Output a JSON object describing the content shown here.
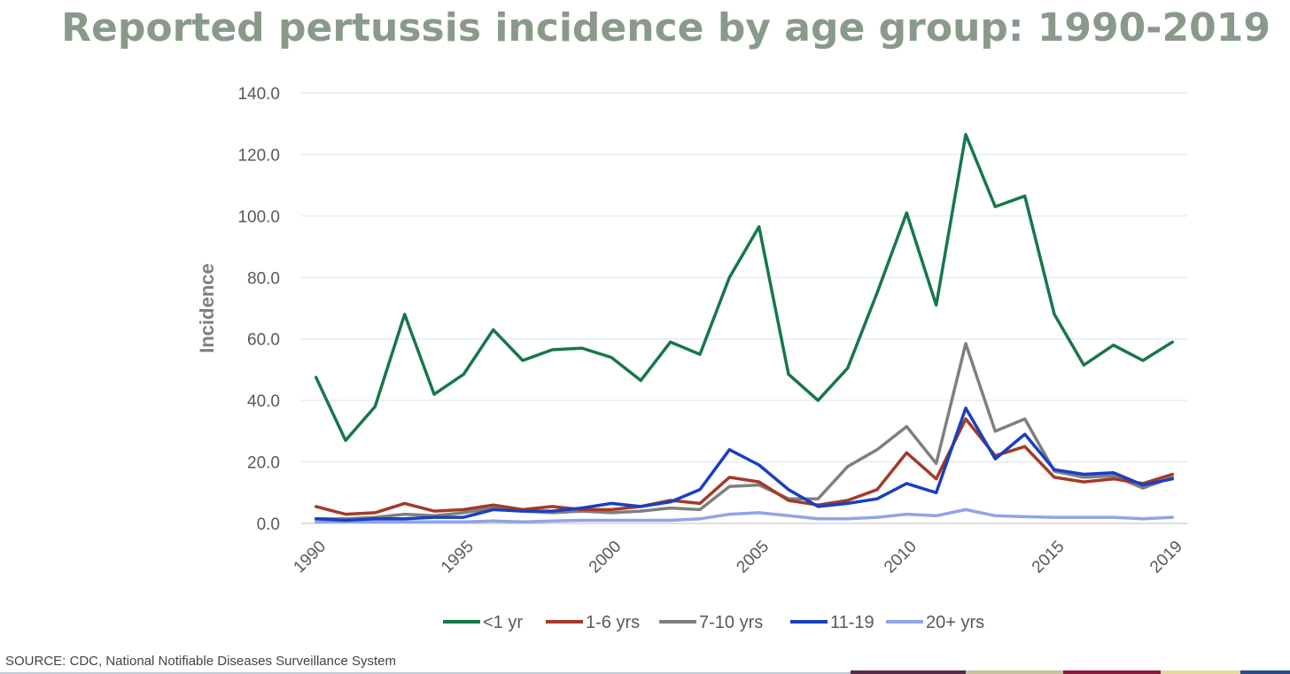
{
  "title": "Reported pertussis incidence by age group: 1990-2019",
  "source": "SOURCE:  CDC, National Notifiable Diseases Surveillance System",
  "footer_colors": [
    "#5a2a4a",
    "#c9c29a",
    "#8b1a3a",
    "#e8d89a",
    "#2a4a8a"
  ],
  "chart_data": {
    "type": "line",
    "title": "Reported pertussis incidence by age group: 1990-2019",
    "ylabel": "Incidence",
    "xlabel": "",
    "ylim": [
      0,
      140
    ],
    "y_ticks": [
      "0.0",
      "20.0",
      "40.0",
      "60.0",
      "80.0",
      "100.0",
      "120.0",
      "140.0"
    ],
    "x_tick_labels": [
      "1990",
      "1995",
      "2000",
      "2005",
      "2010",
      "2015",
      "2019"
    ],
    "x_tick_years": [
      1990,
      1995,
      2000,
      2005,
      2010,
      2015,
      2019
    ],
    "grid": "horizontal",
    "legend_position": "bottom",
    "x": [
      1990,
      1991,
      1992,
      1993,
      1994,
      1995,
      1996,
      1997,
      1998,
      1999,
      2000,
      2001,
      2002,
      2003,
      2004,
      2005,
      2006,
      2007,
      2008,
      2009,
      2010,
      2011,
      2012,
      2013,
      2014,
      2015,
      2016,
      2017,
      2018,
      2019
    ],
    "series": [
      {
        "name": "<1 yr",
        "color": "#17774a",
        "values": [
          47.5,
          27,
          38,
          68,
          42,
          48.5,
          63,
          53,
          56.5,
          57,
          54,
          46.5,
          59,
          55,
          80,
          96.5,
          48.5,
          40,
          50.5,
          75,
          101,
          71,
          126.5,
          103,
          106.5,
          68,
          51.5,
          58,
          53,
          59
        ]
      },
      {
        "name": "1-6 yrs",
        "color": "#a33a28",
        "values": [
          5.5,
          3,
          3.5,
          6.5,
          4,
          4.5,
          6,
          4.5,
          5.5,
          4.5,
          4.5,
          5.5,
          7.5,
          6.5,
          15,
          13.5,
          7.5,
          6,
          7.5,
          11,
          23,
          14.5,
          34,
          22,
          25,
          15,
          13.5,
          14.5,
          13,
          16
        ]
      },
      {
        "name": "7-10 yrs",
        "color": "#7f7f7f",
        "values": [
          1.5,
          1.5,
          2,
          3,
          2.5,
          3.5,
          5,
          4,
          3.5,
          4,
          3.5,
          4,
          5,
          4.5,
          12,
          12.5,
          8,
          8,
          18.5,
          24,
          31.5,
          19.5,
          58.5,
          30,
          34,
          17,
          15,
          15.5,
          11.5,
          15
        ]
      },
      {
        "name": "11-19",
        "color": "#1a3fbf",
        "values": [
          1.5,
          1,
          1.5,
          1.5,
          2,
          2,
          4.5,
          4,
          4,
          5,
          6.5,
          5.5,
          7,
          11,
          24,
          19,
          11,
          5.5,
          6.5,
          8,
          13,
          10,
          37.5,
          21,
          29,
          17.5,
          16,
          16.5,
          12.5,
          14.5
        ]
      },
      {
        "name": "20+ yrs",
        "color": "#8fa4e8",
        "values": [
          0.5,
          0.5,
          0.5,
          0.5,
          0.5,
          0.5,
          0.8,
          0.5,
          0.8,
          1,
          1,
          1,
          1,
          1.5,
          3,
          3.5,
          2.5,
          1.5,
          1.5,
          2,
          3,
          2.5,
          4.5,
          2.5,
          2.2,
          2,
          2,
          2,
          1.5,
          2
        ]
      }
    ]
  }
}
